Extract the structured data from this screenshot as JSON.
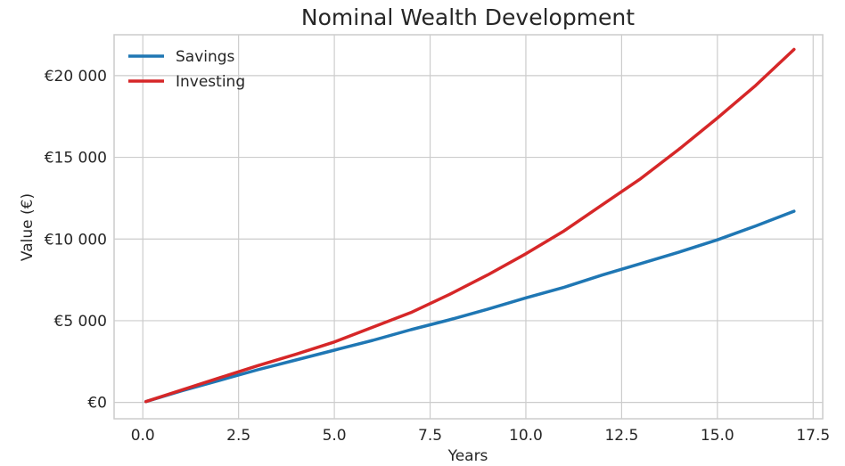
{
  "chart_data": {
    "type": "line",
    "title": "Nominal Wealth Development",
    "xlabel": "Years",
    "ylabel": "Value (€)",
    "xlim": [
      -0.75,
      17.75
    ],
    "ylim": [
      -1000,
      22500
    ],
    "xticks": [
      0.0,
      2.5,
      5.0,
      7.5,
      10.0,
      12.5,
      15.0,
      17.5
    ],
    "xtick_labels": [
      "0.0",
      "2.5",
      "5.0",
      "7.5",
      "10.0",
      "12.5",
      "15.0",
      "17.5"
    ],
    "yticks": [
      0,
      5000,
      10000,
      15000,
      20000
    ],
    "ytick_labels": [
      "€0",
      "€5 000",
      "€10 000",
      "€15 000",
      "€20 000"
    ],
    "grid": true,
    "legend_position": "top-left",
    "series": [
      {
        "name": "Savings",
        "color": "#1f77b4",
        "x": [
          0.08,
          1,
          2,
          3,
          4,
          5,
          6,
          7,
          8,
          9,
          10,
          11,
          12,
          13,
          14,
          15,
          16,
          17
        ],
        "y": [
          50,
          700,
          1350,
          2000,
          2600,
          3200,
          3800,
          4450,
          5050,
          5700,
          6400,
          7050,
          7800,
          8500,
          9200,
          9950,
          10800,
          11700
        ]
      },
      {
        "name": "Investing",
        "color": "#d62728",
        "x": [
          0.08,
          1,
          2,
          3,
          4,
          5,
          6,
          7,
          8,
          9,
          10,
          11,
          12,
          13,
          14,
          15,
          16,
          17
        ],
        "y": [
          50,
          750,
          1500,
          2250,
          2950,
          3700,
          4600,
          5500,
          6600,
          7800,
          9100,
          10500,
          12100,
          13700,
          15500,
          17400,
          19400,
          21600
        ]
      }
    ]
  }
}
